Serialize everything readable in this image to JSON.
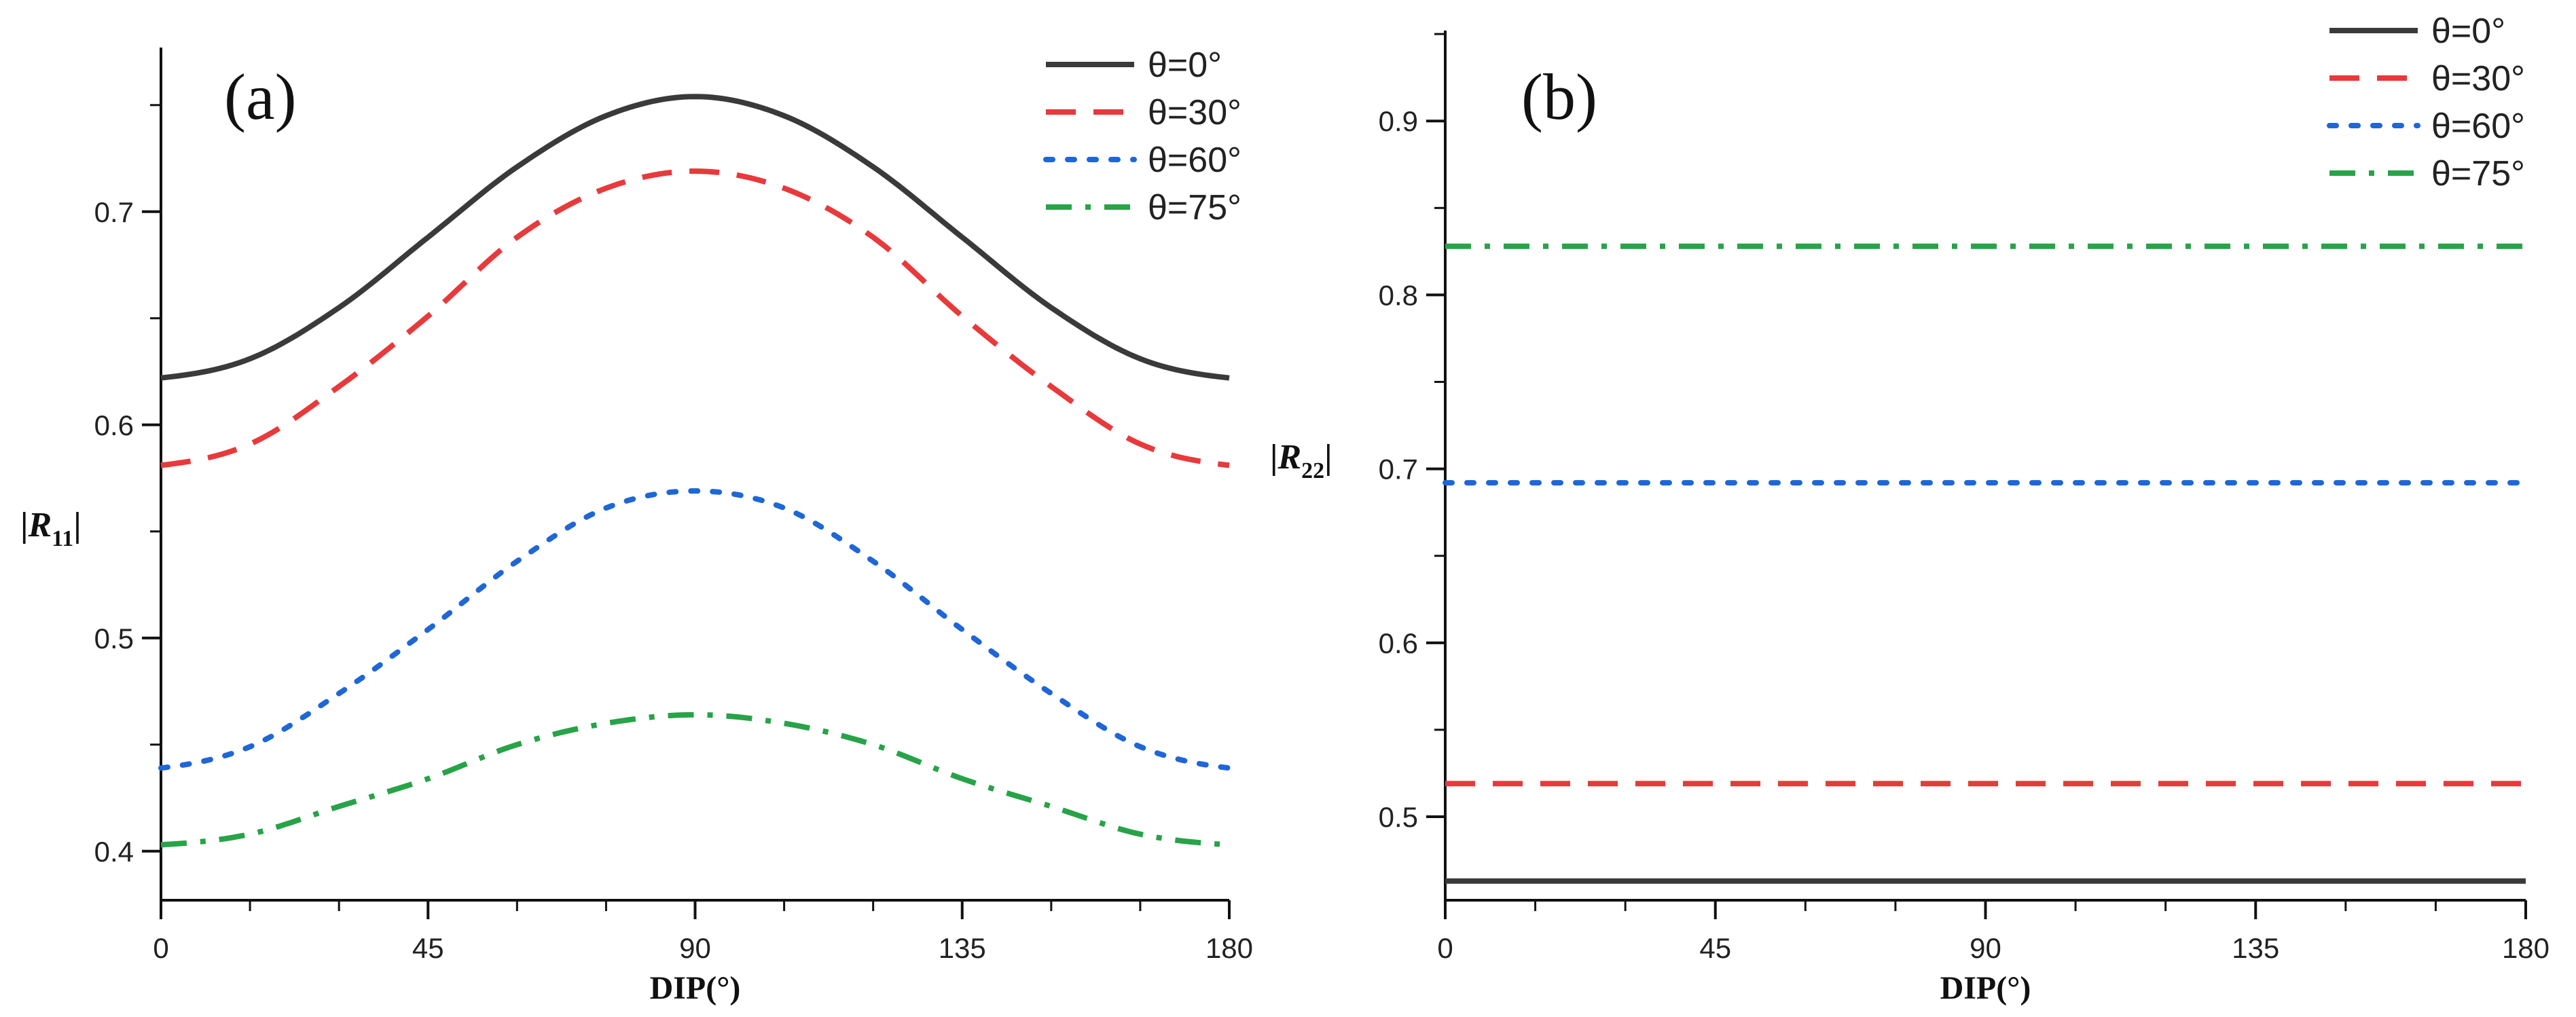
{
  "chart_data": [
    {
      "type": "line",
      "panel_label": "(a)",
      "xlabel": "DIP(°)",
      "ylabel_symbol": "R",
      "ylabel_subscript": "11",
      "xlim": [
        0,
        180
      ],
      "ylim": [
        0.377,
        0.777
      ],
      "xticks": [
        0,
        45,
        90,
        135,
        180
      ],
      "xtick_labels": [
        "0",
        "45",
        "90",
        "135",
        "180"
      ],
      "yticks": [
        0.4,
        0.5,
        0.6,
        0.7
      ],
      "ytick_labels": [
        "0.4",
        "0.5",
        "0.6",
        "0.7"
      ],
      "legend_position": "top-right",
      "x": [
        0,
        15,
        30,
        45,
        60,
        75,
        90,
        105,
        120,
        135,
        150,
        165,
        180
      ],
      "series": [
        {
          "name": "θ=0°",
          "color": "#3a3a3a",
          "dash": "solid",
          "values": [
            0.622,
            0.631,
            0.655,
            0.688,
            0.721,
            0.745,
            0.754,
            0.745,
            0.721,
            0.688,
            0.655,
            0.631,
            0.622
          ]
        },
        {
          "name": "θ=30°",
          "color": "#e8393b",
          "dash": "dashed",
          "values": [
            0.581,
            0.591,
            0.618,
            0.651,
            0.688,
            0.711,
            0.719,
            0.711,
            0.688,
            0.651,
            0.618,
            0.591,
            0.581
          ]
        },
        {
          "name": "θ=60°",
          "color": "#1f66d6",
          "dash": "dotted",
          "values": [
            0.439,
            0.449,
            0.474,
            0.504,
            0.536,
            0.561,
            0.569,
            0.561,
            0.536,
            0.504,
            0.474,
            0.449,
            0.439
          ]
        },
        {
          "name": "θ=75°",
          "color": "#27a348",
          "dash": "dashdot",
          "values": [
            0.403,
            0.408,
            0.421,
            0.434,
            0.45,
            0.46,
            0.464,
            0.46,
            0.45,
            0.434,
            0.421,
            0.408,
            0.403
          ]
        }
      ]
    },
    {
      "type": "line",
      "panel_label": "(b)",
      "xlabel": "DIP(°)",
      "ylabel_symbol": "R",
      "ylabel_subscript": "22",
      "xlim": [
        0,
        180
      ],
      "ylim": [
        0.452,
        0.952
      ],
      "xticks": [
        0,
        45,
        90,
        135,
        180
      ],
      "xtick_labels": [
        "0",
        "45",
        "90",
        "135",
        "180"
      ],
      "yticks": [
        0.5,
        0.6,
        0.7,
        0.8,
        0.9
      ],
      "ytick_labels": [
        "0.5",
        "0.6",
        "0.7",
        "0.8",
        "0.9"
      ],
      "legend_position": "top-right",
      "x": [
        0,
        180
      ],
      "series": [
        {
          "name": "θ=0°",
          "color": "#3a3a3a",
          "dash": "solid",
          "values": [
            0.463,
            0.463
          ]
        },
        {
          "name": "θ=30°",
          "color": "#e8393b",
          "dash": "dashed",
          "values": [
            0.519,
            0.519
          ]
        },
        {
          "name": "θ=60°",
          "color": "#1f66d6",
          "dash": "dotted",
          "values": [
            0.692,
            0.692
          ]
        },
        {
          "name": "θ=75°",
          "color": "#27a348",
          "dash": "dashdot",
          "values": [
            0.828,
            0.828
          ]
        }
      ]
    }
  ]
}
